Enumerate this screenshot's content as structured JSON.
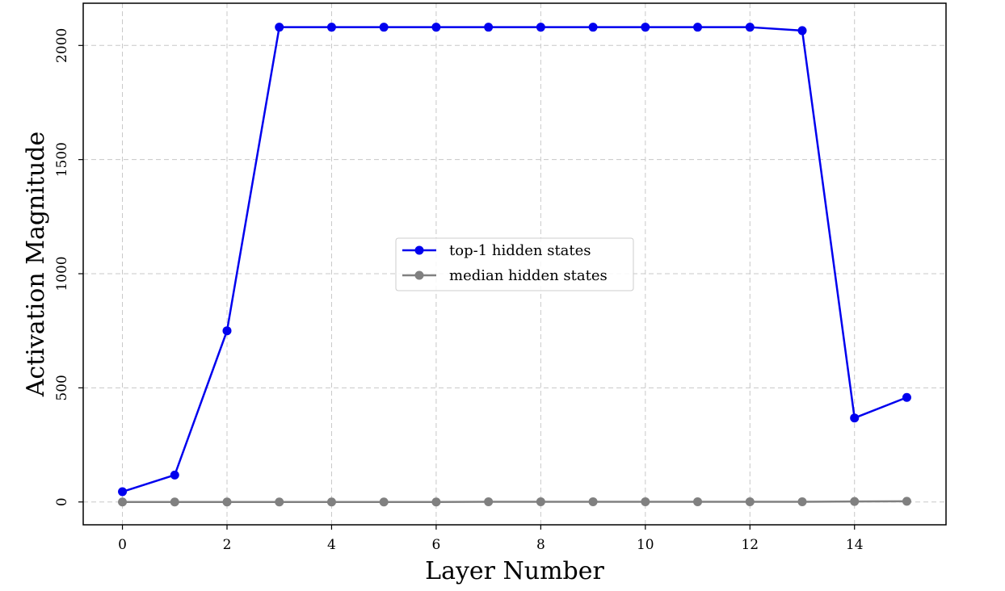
{
  "chart_data": {
    "type": "line",
    "title": "",
    "xlabel": "Layer Number",
    "ylabel": "Activation Magnitude",
    "x": [
      0,
      1,
      2,
      3,
      4,
      5,
      6,
      7,
      8,
      9,
      10,
      11,
      12,
      13,
      14,
      15
    ],
    "xlim": [
      -0.75,
      15.75
    ],
    "ylim": [
      -100,
      2185
    ],
    "xticks": [
      "0",
      "2",
      "4",
      "6",
      "8",
      "10",
      "12",
      "14"
    ],
    "yticks": [
      "0",
      "500",
      "1000",
      "1500",
      "2000"
    ],
    "grid": true,
    "legend_position": "center",
    "series": [
      {
        "name": "top-1 hidden states",
        "color": "#0000ee",
        "marker": "circle",
        "values": [
          45,
          118,
          750,
          2080,
          2080,
          2080,
          2080,
          2080,
          2080,
          2080,
          2080,
          2080,
          2080,
          2065,
          368,
          458
        ]
      },
      {
        "name": "median hidden states",
        "color": "#808080",
        "marker": "circle",
        "values": [
          0,
          0,
          0,
          0,
          0,
          0,
          0,
          1,
          1,
          1,
          1,
          1,
          1,
          1,
          2,
          3
        ]
      }
    ]
  }
}
